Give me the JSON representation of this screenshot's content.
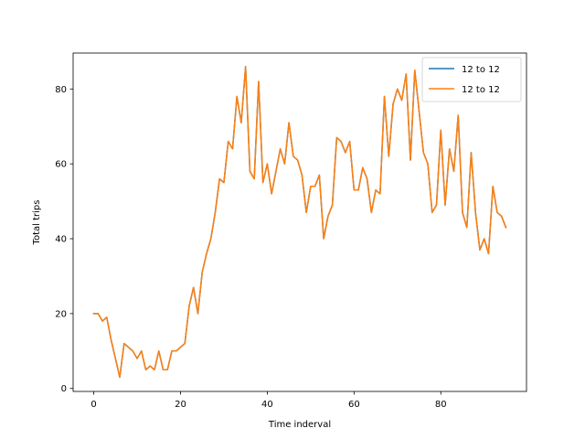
{
  "chart_data": {
    "type": "line",
    "title": "",
    "xlabel": "Time inderval",
    "ylabel": "Total trips",
    "xlim": [
      -4.75,
      99.75
    ],
    "ylim": [
      -0.8,
      89.6
    ],
    "xticks": [
      0,
      20,
      40,
      60,
      80
    ],
    "yticks": [
      0,
      20,
      40,
      60,
      80
    ],
    "grid": false,
    "legend_position": "top-right",
    "series": [
      {
        "name": "12 to 12",
        "color": "#1f77b4",
        "values": [
          20,
          20,
          18,
          19,
          13,
          8,
          3,
          12,
          11,
          10,
          8,
          10,
          5,
          6,
          5,
          10,
          5,
          5,
          10,
          10,
          11,
          12,
          22,
          27,
          20,
          31,
          36,
          40,
          47,
          56,
          55,
          66,
          64,
          78,
          71,
          86,
          58,
          56,
          82,
          55,
          60,
          52,
          58,
          64,
          60,
          71,
          62,
          61,
          57,
          47,
          54,
          54,
          57,
          40,
          46,
          49,
          67,
          66,
          63,
          66,
          53,
          53,
          59,
          56,
          47,
          53,
          52,
          78,
          62,
          76,
          80,
          77,
          84,
          61,
          85,
          74,
          63,
          60,
          47,
          49,
          69,
          49,
          64,
          58,
          73,
          47,
          43,
          63,
          47,
          37,
          40,
          36,
          54,
          47,
          46,
          43
        ]
      },
      {
        "name": "12 to 12",
        "color": "#ff7f0e",
        "values": [
          20,
          20,
          18,
          19,
          13,
          8,
          3,
          12,
          11,
          10,
          8,
          10,
          5,
          6,
          5,
          10,
          5,
          5,
          10,
          10,
          11,
          12,
          22,
          27,
          20,
          31,
          36,
          40,
          47,
          56,
          55,
          66,
          64,
          78,
          71,
          86,
          58,
          56,
          82,
          55,
          60,
          52,
          58,
          64,
          60,
          71,
          62,
          61,
          57,
          47,
          54,
          54,
          57,
          40,
          46,
          49,
          67,
          66,
          63,
          66,
          53,
          53,
          59,
          56,
          47,
          53,
          52,
          78,
          62,
          76,
          80,
          77,
          84,
          61,
          85,
          74,
          63,
          60,
          47,
          49,
          69,
          49,
          64,
          58,
          73,
          47,
          43,
          63,
          47,
          37,
          40,
          36,
          54,
          47,
          46,
          43
        ]
      }
    ]
  }
}
